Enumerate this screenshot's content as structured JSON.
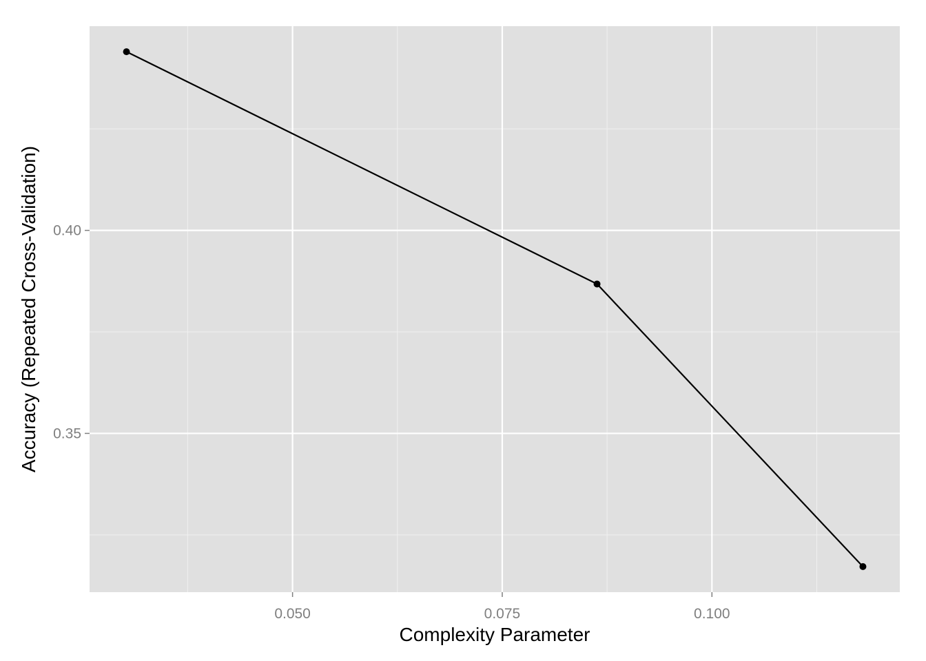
{
  "chart_data": {
    "type": "line",
    "title": "",
    "xlabel": "Complexity Parameter",
    "ylabel": "Accuracy (Repeated Cross-Validation)",
    "xlim": [
      0.0258,
      0.1224
    ],
    "ylim": [
      0.3109,
      0.4503
    ],
    "x_ticks": [
      0.05,
      0.075,
      0.1
    ],
    "x_tick_labels": [
      "0.050",
      "0.075",
      "0.100"
    ],
    "x_minor_ticks": [
      0.0375,
      0.0625,
      0.0875,
      0.1125
    ],
    "y_ticks": [
      0.35,
      0.4
    ],
    "y_tick_labels": [
      "0.35",
      "0.40"
    ],
    "y_minor_ticks": [
      0.325,
      0.375,
      0.425
    ],
    "grid": true,
    "series": [
      {
        "x": [
          0.0302,
          0.0863,
          0.118
        ],
        "y": [
          0.444,
          0.3868,
          0.3172
        ],
        "color": "#000000"
      }
    ]
  },
  "colors": {
    "panel_background": "#e0e0e0",
    "grid_major": "#ffffff",
    "grid_minor": "#f0f0f0",
    "tick_text": "#7f7f7f",
    "series": "#000000"
  }
}
